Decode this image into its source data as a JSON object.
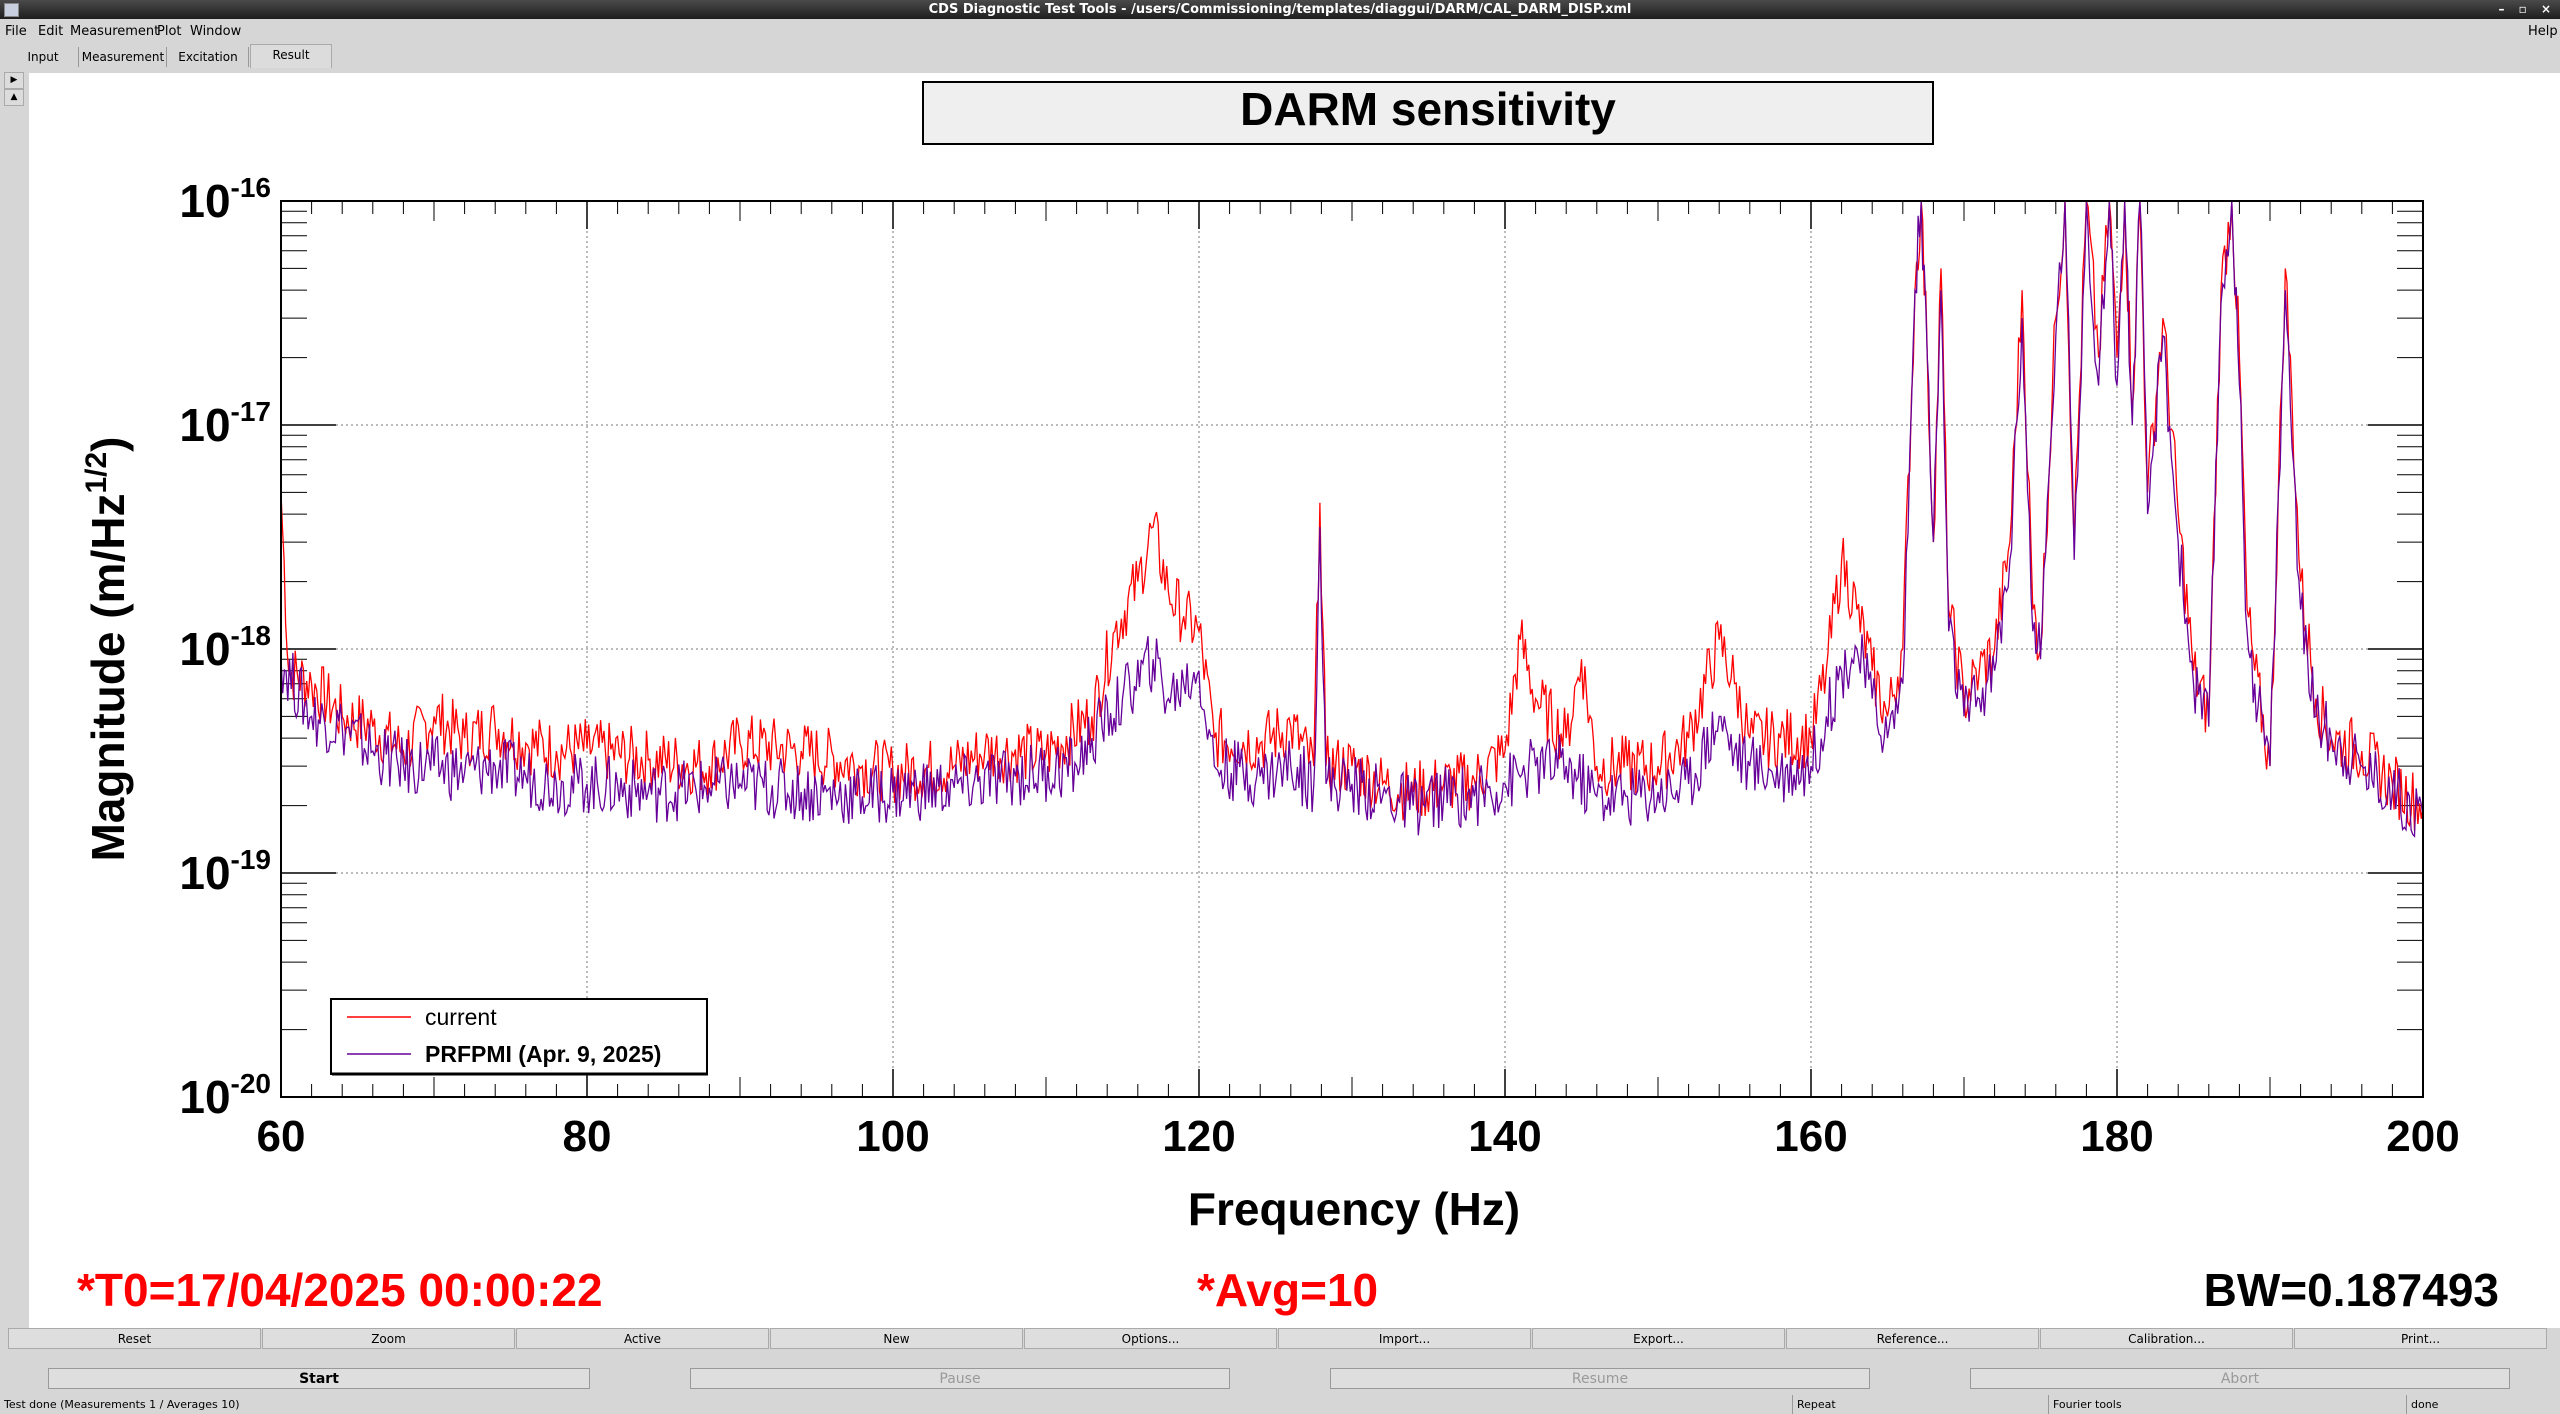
{
  "window": {
    "title": "CDS Diagnostic Test Tools - /users/Commissioning/templates/diaggui/DARM/CAL_DARM_DISP.xml"
  },
  "menu": {
    "file": "File",
    "edit": "Edit",
    "measurement": "Measurement",
    "plot": "Plot",
    "window": "Window",
    "help": "Help"
  },
  "tabs": {
    "input": "Input",
    "measurement": "Measurement",
    "excitation": "Excitation",
    "result": "Result"
  },
  "plot": {
    "time_label": "*T0=17/04/2025 00:00:22",
    "avg_label": "*Avg=10",
    "bw_label": "BW=0.187493"
  },
  "toolbar": {
    "reset": "Reset",
    "zoom": "Zoom",
    "active": "Active",
    "new": "New",
    "options": "Options...",
    "import": "Import...",
    "export": "Export...",
    "reference": "Reference...",
    "calibration": "Calibration...",
    "print": "Print..."
  },
  "controls": {
    "start": "Start",
    "pause": "Pause",
    "resume": "Resume",
    "abort": "Abort"
  },
  "status": {
    "message": "Test done (Measurements 1 / Averages 10)",
    "repeat": "Repeat",
    "fourier": "Fourier tools",
    "state": "done"
  },
  "chart_data": {
    "type": "line",
    "title": "DARM sensitivity",
    "xlabel": "Frequency (Hz)",
    "ylabel": "Magnitude (m/Hz^1/2)",
    "xlim": [
      60,
      200
    ],
    "ylim": [
      1e-20,
      1e-16
    ],
    "yscale": "log",
    "xticks": [
      "60",
      "80",
      "100",
      "120",
      "140",
      "160",
      "180",
      "200"
    ],
    "yticks": [
      "10^-20",
      "10^-19",
      "10^-18",
      "10^-17",
      "10^-16"
    ],
    "grid": true,
    "legend_position": "bottom-left",
    "series": [
      {
        "name": "current",
        "color": "#ff0000",
        "points": [
          [
            60,
            5e-18
          ],
          [
            60.5,
            8e-19
          ],
          [
            62,
            7e-19
          ],
          [
            64,
            5e-19
          ],
          [
            66,
            4.5e-19
          ],
          [
            68,
            3.5e-19
          ],
          [
            70,
            5e-19
          ],
          [
            72,
            4e-19
          ],
          [
            74,
            4.5e-19
          ],
          [
            76,
            3.8e-19
          ],
          [
            78,
            3.5e-19
          ],
          [
            80,
            3.6e-19
          ],
          [
            84,
            3.2e-19
          ],
          [
            88,
            3e-19
          ],
          [
            90,
            3.8e-19
          ],
          [
            94,
            3.5e-19
          ],
          [
            98,
            3e-19
          ],
          [
            100,
            2.8e-19
          ],
          [
            104,
            3e-19
          ],
          [
            106,
            3.5e-19
          ],
          [
            110,
            3.4e-19
          ],
          [
            113,
            5e-19
          ],
          [
            114.5,
            1.2e-18
          ],
          [
            116,
            2e-18
          ],
          [
            117,
            3.5e-18
          ],
          [
            118,
            1.8e-18
          ],
          [
            119,
            1.4e-18
          ],
          [
            120,
            1.2e-18
          ],
          [
            121,
            4e-19
          ],
          [
            124,
            3.8e-19
          ],
          [
            126,
            4.5e-19
          ],
          [
            127.5,
            3e-19
          ],
          [
            127.9,
            4.5e-18
          ],
          [
            128.3,
            3e-19
          ],
          [
            130,
            3e-19
          ],
          [
            132,
            2.5e-19
          ],
          [
            134,
            2.3e-19
          ],
          [
            136,
            2.5e-19
          ],
          [
            138,
            2.6e-19
          ],
          [
            140,
            3.5e-19
          ],
          [
            141,
            1.1e-18
          ],
          [
            142,
            6e-19
          ],
          [
            144,
            4e-19
          ],
          [
            145,
            9e-19
          ],
          [
            146,
            3e-19
          ],
          [
            148,
            3e-19
          ],
          [
            150,
            3e-19
          ],
          [
            152,
            4e-19
          ],
          [
            154,
            1.1e-18
          ],
          [
            155,
            7e-19
          ],
          [
            156,
            4e-19
          ],
          [
            158,
            4e-19
          ],
          [
            160,
            4e-19
          ],
          [
            161,
            8e-19
          ],
          [
            162,
            2.5e-18
          ],
          [
            163,
            1.5e-18
          ],
          [
            164,
            8e-19
          ],
          [
            165,
            5e-19
          ],
          [
            166,
            1e-18
          ],
          [
            166.8,
            4e-17
          ],
          [
            167.2,
            1e-16
          ],
          [
            167.6,
            2e-17
          ],
          [
            168,
            3e-18
          ],
          [
            168.5,
            5e-17
          ],
          [
            169,
            1.5e-18
          ],
          [
            170,
            6e-19
          ],
          [
            171,
            8e-19
          ],
          [
            172,
            1e-18
          ],
          [
            173,
            3e-18
          ],
          [
            173.8,
            4e-17
          ],
          [
            174.5,
            1.5e-18
          ],
          [
            175,
            1e-18
          ],
          [
            176,
            3e-17
          ],
          [
            176.6,
            1e-16
          ],
          [
            177.2,
            3e-18
          ],
          [
            178,
            1e-16
          ],
          [
            178.8,
            2e-17
          ],
          [
            179.5,
            1e-16
          ],
          [
            180,
            2e-17
          ],
          [
            180.5,
            1e-16
          ],
          [
            181,
            1.2e-17
          ],
          [
            181.5,
            1e-16
          ],
          [
            182,
            5e-18
          ],
          [
            183,
            3e-17
          ],
          [
            184,
            4e-18
          ],
          [
            185,
            8e-19
          ],
          [
            186,
            5e-19
          ],
          [
            186.8,
            4e-17
          ],
          [
            187.5,
            1e-16
          ],
          [
            188,
            2e-17
          ],
          [
            188.5,
            1.5e-18
          ],
          [
            189,
            8e-19
          ],
          [
            190,
            3e-19
          ],
          [
            191,
            5e-17
          ],
          [
            192,
            2e-18
          ],
          [
            193,
            6e-19
          ],
          [
            194,
            4e-19
          ],
          [
            196,
            3.5e-19
          ],
          [
            198,
            2.5e-19
          ],
          [
            200,
            2e-19
          ]
        ]
      },
      {
        "name": "PRFPMI (Apr. 9, 2025)",
        "color": "#660099",
        "points": [
          [
            60,
            9e-19
          ],
          [
            62,
            5e-19
          ],
          [
            64,
            4.5e-19
          ],
          [
            66,
            3.5e-19
          ],
          [
            68,
            3e-19
          ],
          [
            70,
            3e-19
          ],
          [
            72,
            2.8e-19
          ],
          [
            74,
            3e-19
          ],
          [
            76,
            2.7e-19
          ],
          [
            78,
            2.5e-19
          ],
          [
            80,
            2.5e-19
          ],
          [
            84,
            2.3e-19
          ],
          [
            88,
            2.4e-19
          ],
          [
            90,
            2.5e-19
          ],
          [
            94,
            2.3e-19
          ],
          [
            98,
            2.2e-19
          ],
          [
            100,
            2.3e-19
          ],
          [
            104,
            2.4e-19
          ],
          [
            108,
            2.7e-19
          ],
          [
            112,
            3e-19
          ],
          [
            113,
            4e-19
          ],
          [
            115,
            6e-19
          ],
          [
            117,
            9e-19
          ],
          [
            118,
            6e-19
          ],
          [
            119,
            7e-19
          ],
          [
            120,
            8e-19
          ],
          [
            121,
            3e-19
          ],
          [
            124,
            2.7e-19
          ],
          [
            126,
            3e-19
          ],
          [
            127.5,
            2.5e-19
          ],
          [
            127.9,
            3.5e-18
          ],
          [
            128.3,
            2.5e-19
          ],
          [
            130,
            2.5e-19
          ],
          [
            132,
            2.2e-19
          ],
          [
            134,
            2e-19
          ],
          [
            136,
            2.2e-19
          ],
          [
            138,
            2.2e-19
          ],
          [
            140,
            2.5e-19
          ],
          [
            142,
            3e-19
          ],
          [
            144,
            3e-19
          ],
          [
            146,
            2.2e-19
          ],
          [
            148,
            2.2e-19
          ],
          [
            150,
            2.3e-19
          ],
          [
            152,
            2.5e-19
          ],
          [
            154,
            5e-19
          ],
          [
            155,
            3.5e-19
          ],
          [
            156,
            3e-19
          ],
          [
            158,
            2.8e-19
          ],
          [
            160,
            3e-19
          ],
          [
            161,
            5e-19
          ],
          [
            162,
            8e-19
          ],
          [
            163,
            1e-18
          ],
          [
            164,
            6e-19
          ],
          [
            165,
            4e-19
          ],
          [
            166,
            7e-19
          ],
          [
            166.8,
            4e-17
          ],
          [
            167.2,
            1e-16
          ],
          [
            167.6,
            2e-17
          ],
          [
            168,
            3e-18
          ],
          [
            168.5,
            4e-17
          ],
          [
            169,
            1.2e-18
          ],
          [
            170,
            5e-19
          ],
          [
            171,
            6e-19
          ],
          [
            172,
            8e-19
          ],
          [
            173,
            2.5e-18
          ],
          [
            173.8,
            3e-17
          ],
          [
            174.5,
            1.2e-18
          ],
          [
            175,
            9e-19
          ],
          [
            176,
            2.5e-17
          ],
          [
            176.6,
            1e-16
          ],
          [
            177.2,
            2.5e-18
          ],
          [
            178,
            1e-16
          ],
          [
            178.8,
            1.5e-17
          ],
          [
            179.5,
            1e-16
          ],
          [
            180,
            1.5e-17
          ],
          [
            180.5,
            1e-16
          ],
          [
            181,
            1e-17
          ],
          [
            181.5,
            1e-16
          ],
          [
            182,
            4e-18
          ],
          [
            183,
            2.5e-17
          ],
          [
            184,
            3e-18
          ],
          [
            185,
            7e-19
          ],
          [
            186,
            4.5e-19
          ],
          [
            186.8,
            3.5e-17
          ],
          [
            187.5,
            1e-16
          ],
          [
            188,
            1.5e-17
          ],
          [
            188.5,
            1.2e-18
          ],
          [
            189,
            7e-19
          ],
          [
            190,
            3e-19
          ],
          [
            191,
            4e-17
          ],
          [
            192,
            1.5e-18
          ],
          [
            193,
            5e-19
          ],
          [
            194,
            4e-19
          ],
          [
            196,
            3e-19
          ],
          [
            198,
            2.3e-19
          ],
          [
            200,
            1.8e-19
          ]
        ]
      }
    ]
  }
}
